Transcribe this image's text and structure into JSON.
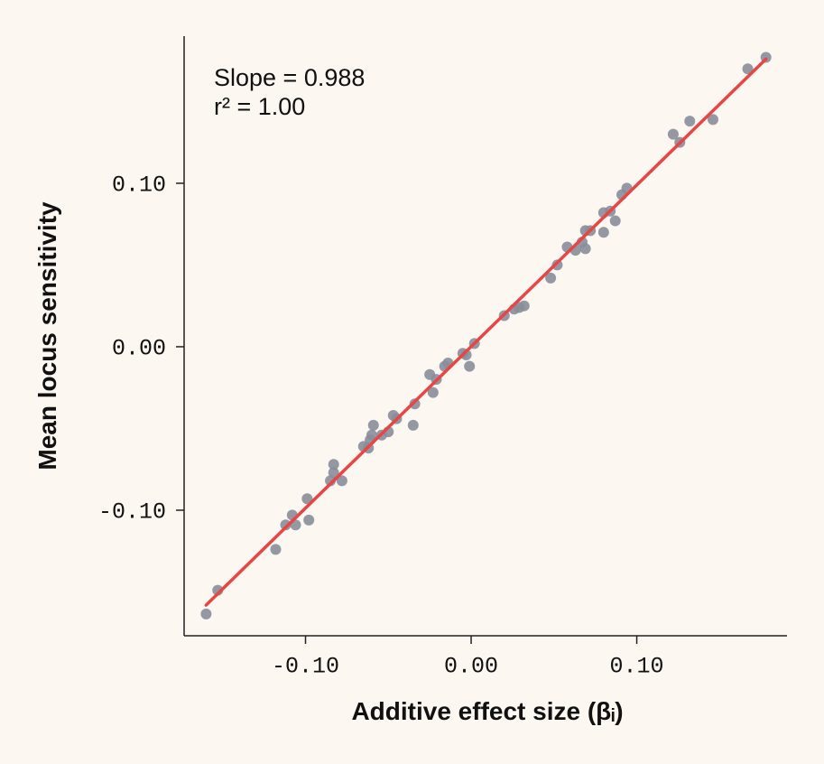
{
  "chart_data": {
    "type": "scatter",
    "annotations": [
      "Slope = 0.988",
      "r² = 1.00"
    ],
    "xlabel": "Additive effect size (βᵢ)",
    "ylabel": "Mean locus sensitivity",
    "xlim": [
      -0.1733,
      0.1907
    ],
    "ylim": [
      -0.1768,
      0.19
    ],
    "xticks": [
      {
        "value": -0.1,
        "label": "-0.10"
      },
      {
        "value": 0,
        "label": "0.00"
      },
      {
        "value": 0.1,
        "label": "0.10"
      }
    ],
    "yticks": [
      {
        "value": -0.1,
        "label": "-0.10"
      },
      {
        "value": 0,
        "label": "0.00"
      },
      {
        "value": 0.1,
        "label": "0.10"
      }
    ],
    "color": "#878d99",
    "x": [
      -0.16,
      -0.153,
      -0.118,
      -0.112,
      -0.108,
      -0.106,
      -0.099,
      -0.098,
      -0.085,
      -0.083,
      -0.083,
      -0.078,
      -0.065,
      -0.062,
      -0.061,
      -0.06,
      -0.059,
      -0.054,
      -0.05,
      -0.047,
      -0.045,
      -0.035,
      -0.034,
      -0.025,
      -0.023,
      -0.021,
      -0.016,
      -0.014,
      -0.005,
      -0.003,
      -0.001,
      0.002,
      0.02,
      0.026,
      0.029,
      0.032,
      0.048,
      0.052,
      0.058,
      0.063,
      0.067,
      0.069,
      0.069,
      0.072,
      0.08,
      0.08,
      0.084,
      0.087,
      0.091,
      0.094,
      0.122,
      0.126,
      0.132,
      0.146,
      0.167,
      0.178
    ],
    "y": [
      -0.1635,
      -0.149,
      -0.124,
      -0.109,
      -0.103,
      -0.109,
      -0.093,
      -0.106,
      -0.082,
      -0.077,
      -0.072,
      -0.082,
      -0.061,
      -0.062,
      -0.057,
      -0.054,
      -0.048,
      -0.054,
      -0.052,
      -0.042,
      -0.044,
      -0.048,
      -0.035,
      -0.017,
      -0.028,
      -0.02,
      -0.012,
      -0.01,
      -0.004,
      -0.005,
      -0.012,
      0.002,
      0.019,
      0.023,
      0.024,
      0.025,
      0.042,
      0.05,
      0.061,
      0.059,
      0.064,
      0.06,
      0.071,
      0.071,
      0.082,
      0.07,
      0.083,
      0.077,
      0.093,
      0.097,
      0.13,
      0.125,
      0.138,
      0.139,
      0.17,
      0.177
    ],
    "fit": {
      "x": [
        -0.16,
        0.178
      ],
      "y": [
        -0.158,
        0.176
      ],
      "color": "#e84545"
    }
  }
}
